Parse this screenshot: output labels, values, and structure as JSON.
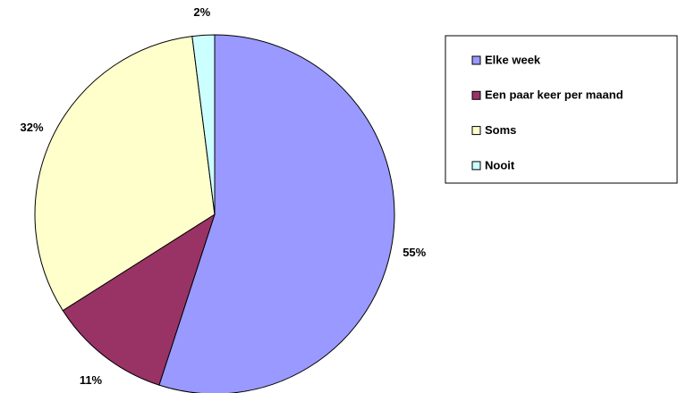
{
  "chart_data": {
    "type": "pie",
    "categories": [
      "Elke week",
      "Een paar keer per maand",
      "Soms",
      "Nooit"
    ],
    "values": [
      55,
      11,
      32,
      2
    ],
    "value_labels": [
      "55%",
      "11%",
      "32%",
      "2%"
    ],
    "colors": [
      "#9999ff",
      "#993366",
      "#ffffcc",
      "#ccffff"
    ],
    "legend": "right"
  }
}
